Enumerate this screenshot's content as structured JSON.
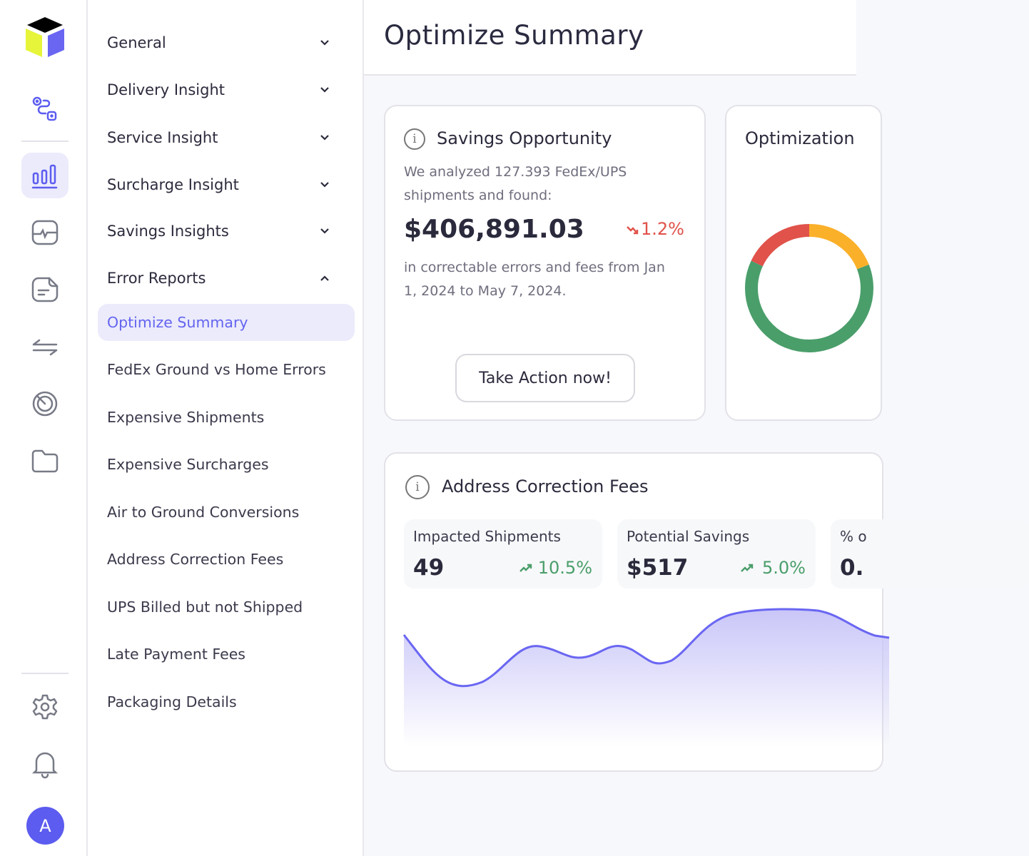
{
  "header": {
    "title": "Optimize Summary"
  },
  "sidebar_nav": {
    "groups": [
      {
        "label": "General"
      },
      {
        "label": "Delivery Insight"
      },
      {
        "label": "Service Insight"
      },
      {
        "label": "Surcharge Insight"
      },
      {
        "label": "Savings Insights"
      },
      {
        "label": "Error Reports"
      }
    ],
    "error_reports_items": [
      {
        "label": "Optimize Summary"
      },
      {
        "label": "FedEx Ground vs Home Errors"
      },
      {
        "label": "Expensive Shipments"
      },
      {
        "label": "Expensive Surcharges"
      },
      {
        "label": "Air to Ground Conversions"
      },
      {
        "label": "Address Correction Fees"
      },
      {
        "label": "UPS Billed but not Shipped"
      },
      {
        "label": "Late Payment Fees"
      },
      {
        "label": "Packaging Details"
      }
    ]
  },
  "user": {
    "avatar_initial": "A"
  },
  "savings": {
    "title": "Savings Opportunity",
    "intro": "We analyzed 127.393 FedEx/UPS shipments and found:",
    "amount": "$406,891.03",
    "change": "1.2%",
    "description": "in correctable errors and fees from Jan 1, 2024 to May 7, 2024.",
    "action_label": "Take Action now!"
  },
  "optimization": {
    "title": "Optimization",
    "segments": [
      {
        "color": "#4a9e6a",
        "share": 0.63
      },
      {
        "color": "#e0524a",
        "share": 0.18
      },
      {
        "color": "#fbb02a",
        "share": 0.19
      }
    ]
  },
  "address_correction": {
    "title": "Address Correction Fees",
    "stats": [
      {
        "label": "Impacted Shipments",
        "value": "49",
        "change": "10.5%"
      },
      {
        "label": "Potential Savings",
        "value": "$517",
        "change": "5.0%"
      },
      {
        "label": "% o",
        "value": "0."
      }
    ]
  },
  "colors": {
    "accent": "#6464f0",
    "positive": "#4a9e6a",
    "negative": "#e0524a"
  }
}
